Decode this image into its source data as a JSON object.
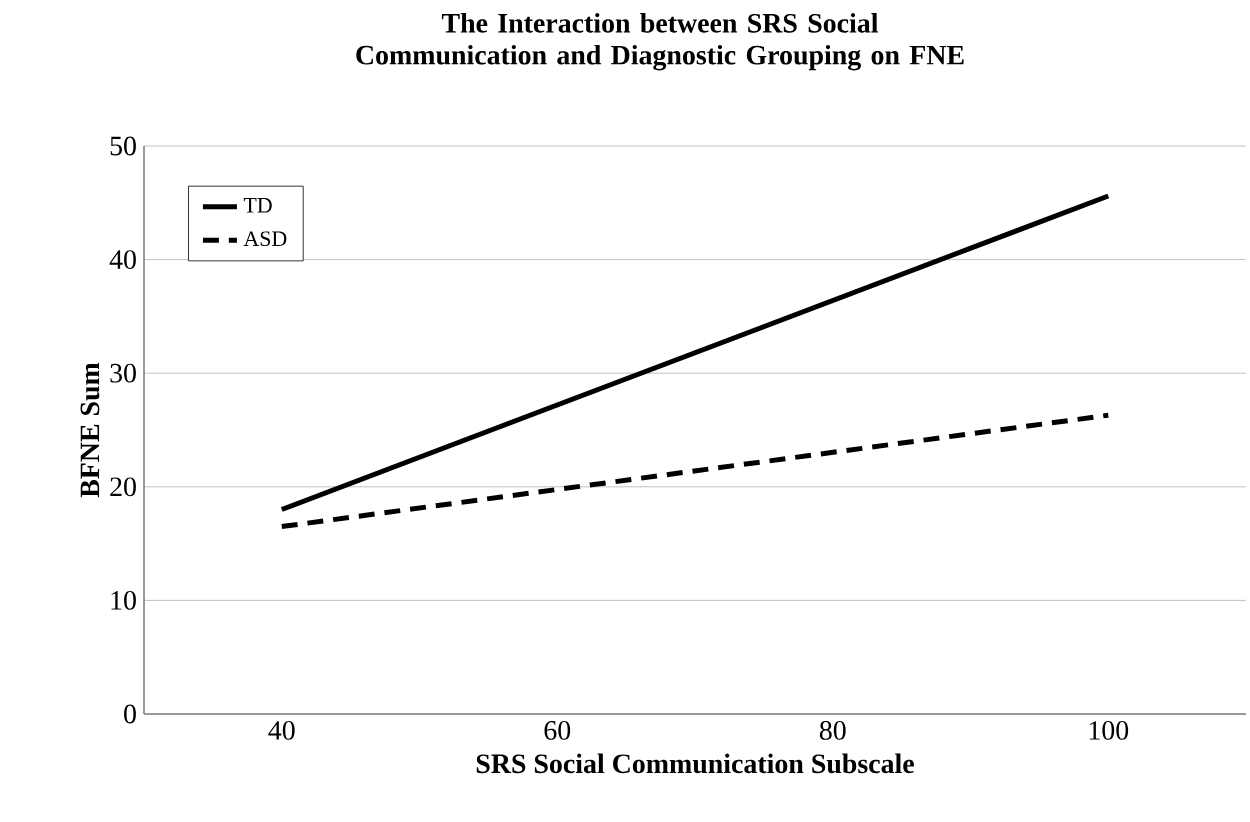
{
  "chart_data": {
    "type": "line",
    "title": "The Interaction between SRS Social Communication and Diagnostic Grouping on FNE",
    "xlabel": "SRS Social Communication Subscale",
    "ylabel": "BFNE Sum",
    "x": [
      40,
      100
    ],
    "series": [
      {
        "name": "TD",
        "color": "#000000",
        "values": [
          18,
          45.6
        ],
        "line_style": "solid"
      },
      {
        "name": "ASD",
        "color": "#000000",
        "values": [
          16.5,
          26.3
        ],
        "line_style": "dashed"
      }
    ],
    "xlim": [
      30,
      110
    ],
    "xticks": [
      40,
      60,
      80,
      100
    ],
    "ylim": [
      0,
      50
    ],
    "yticks": [
      0,
      10,
      20,
      30,
      40,
      50
    ],
    "grid": "y",
    "legend": "top left",
    "marker": "none"
  }
}
